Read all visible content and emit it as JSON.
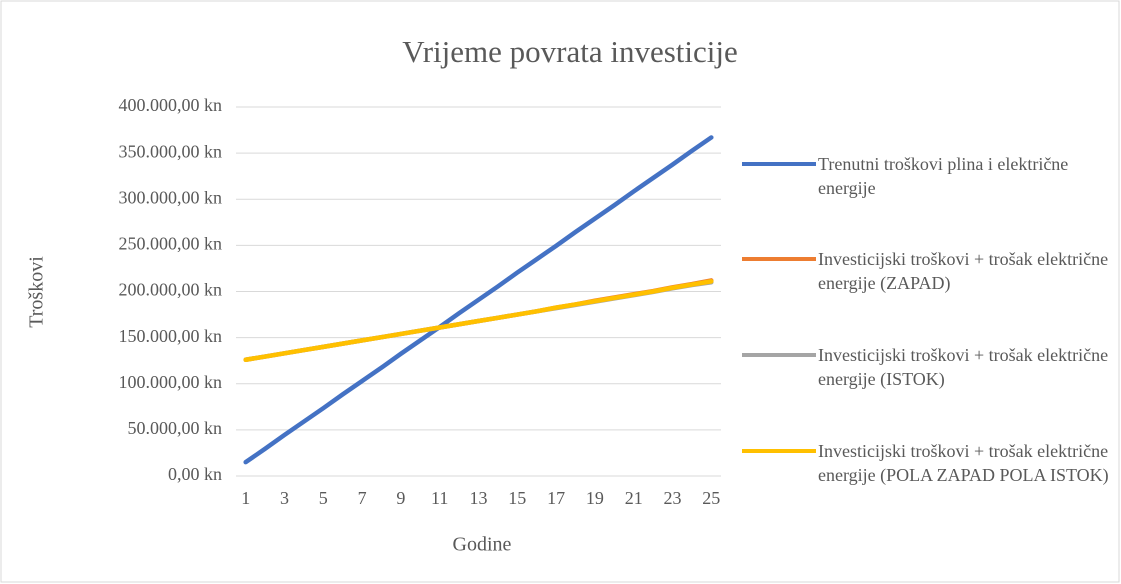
{
  "chart_data": {
    "type": "line",
    "title": "Vrijeme povrata investicije",
    "x_label": "Godine",
    "y_label": "Troškovi",
    "categories": [
      1,
      null,
      3,
      null,
      5,
      null,
      7,
      null,
      9,
      null,
      11,
      null,
      13,
      null,
      15,
      null,
      17,
      null,
      19,
      null,
      21,
      null,
      23,
      null,
      25
    ],
    "series": [
      {
        "name": "Trenutni troškovi plina i električne energije",
        "color": "#4472c4",
        "values": [
          15000,
          29500,
          44500,
          59000,
          73500,
          88500,
          103000,
          117500,
          132500,
          147000,
          161500,
          176500,
          191000,
          205500,
          220500,
          235000,
          249500,
          264500,
          279000,
          293500,
          308500,
          323000,
          337500,
          352500,
          367000
        ]
      },
      {
        "name": "Investicijski troškovi + trošak električne energije (ZAPAD)",
        "color": "#ed7d31",
        "values": [
          126000,
          129500,
          133000,
          136500,
          140000,
          143500,
          147000,
          150500,
          154000,
          157500,
          161000,
          164500,
          168000,
          171500,
          175000,
          178500,
          182500,
          186000,
          190000,
          193500,
          197000,
          200500,
          204500,
          208000,
          212000
        ]
      },
      {
        "name": "Investicijski troškovi + trošak električne energije (ISTOK)",
        "color": "#a5a5a5",
        "values": [
          126000,
          129500,
          133000,
          136500,
          140000,
          143500,
          147000,
          150500,
          154000,
          157500,
          161000,
          164500,
          168000,
          171500,
          175000,
          178500,
          182000,
          185500,
          189000,
          192500,
          196000,
          199500,
          203500,
          207000,
          210000
        ]
      },
      {
        "name": "Investicijski troškovi + trošak električne energije (POLA ZAPAD POLA ISTOK)",
        "color": "#ffc000",
        "values": [
          126000,
          129500,
          133000,
          136500,
          140000,
          143500,
          147000,
          150500,
          154000,
          157500,
          161000,
          164500,
          168000,
          171500,
          175000,
          178500,
          182500,
          186000,
          189500,
          193000,
          196500,
          200000,
          204000,
          207500,
          211000
        ]
      }
    ],
    "ylim": [
      0,
      400000
    ],
    "yticks": [
      {
        "value": 0,
        "label": "0,00 kn"
      },
      {
        "value": 50000,
        "label": "50.000,00 kn"
      },
      {
        "value": 100000,
        "label": "100.000,00 kn"
      },
      {
        "value": 150000,
        "label": "150.000,00 kn"
      },
      {
        "value": 200000,
        "label": "200.000,00 kn"
      },
      {
        "value": 250000,
        "label": "250.000,00 kn"
      },
      {
        "value": 300000,
        "label": "300.000,00 kn"
      },
      {
        "value": 350000,
        "label": "350.000,00 kn"
      },
      {
        "value": 400000,
        "label": "400.000,00 kn"
      }
    ],
    "grid": true,
    "legend": "right"
  }
}
